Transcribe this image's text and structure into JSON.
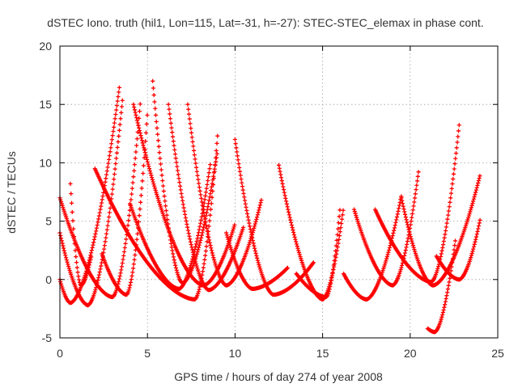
{
  "chart_data": {
    "type": "scatter",
    "title": "dSTEC Iono. truth (hil1, Lon=115, Lat=-31, h=-27): STEC-STEC_elemax in phase cont.",
    "xlabel": "GPS time / hours of day 274 of year 2008",
    "ylabel": "dSTEC  / TECUs",
    "xlim": [
      0,
      25
    ],
    "ylim": [
      -5,
      20
    ],
    "xticks": [
      0,
      5,
      10,
      15,
      20,
      25
    ],
    "yticks": [
      -5,
      0,
      5,
      10,
      15,
      20
    ],
    "grid": true,
    "marker": "plus",
    "color": "#ff0000",
    "arcs": [
      {
        "t_start": 0.0,
        "t_end": 3.4,
        "t_min": 0.6,
        "y_min": -2.0,
        "y_start": 0.0,
        "y_end": 16.5
      },
      {
        "t_start": 0.0,
        "t_end": 3.6,
        "t_min": 1.6,
        "y_min": -2.2,
        "y_start": 4.0,
        "y_end": 15.8
      },
      {
        "t_start": 0.0,
        "t_end": 4.6,
        "t_min": 3.0,
        "y_min": -1.5,
        "y_start": 7.0,
        "y_end": 15.3
      },
      {
        "t_start": 0.6,
        "t_end": 1.8,
        "t_min": 1.2,
        "y_min": -0.5,
        "y_start": 8.2,
        "y_end": 2.0
      },
      {
        "t_start": 2.4,
        "t_end": 5.0,
        "t_min": 3.8,
        "y_min": -1.3,
        "y_start": 2.2,
        "y_end": 14.3
      },
      {
        "t_start": 2.0,
        "t_end": 9.0,
        "t_min": 7.7,
        "y_min": -1.7,
        "y_start": 9.5,
        "y_end": 12.3
      },
      {
        "t_start": 4.0,
        "t_end": 8.6,
        "t_min": 6.8,
        "y_min": -0.8,
        "y_start": 6.5,
        "y_end": 10.0
      },
      {
        "t_start": 4.2,
        "t_end": 10.0,
        "t_min": 8.2,
        "y_min": -0.5,
        "y_start": 15.0,
        "y_end": 4.8
      },
      {
        "t_start": 5.3,
        "t_end": 9.0,
        "t_min": 7.0,
        "y_min": -0.3,
        "y_start": 17.0,
        "y_end": 11.0
      },
      {
        "t_start": 6.2,
        "t_end": 10.5,
        "t_min": 8.5,
        "y_min": -0.9,
        "y_start": 15.0,
        "y_end": 4.6
      },
      {
        "t_start": 7.3,
        "t_end": 11.5,
        "t_min": 9.5,
        "y_min": -0.5,
        "y_start": 15.0,
        "y_end": 6.8
      },
      {
        "t_start": 10.0,
        "t_end": 14.5,
        "t_min": 12.2,
        "y_min": -1.3,
        "y_start": 12.0,
        "y_end": 1.5
      },
      {
        "t_start": 12.5,
        "t_end": 16.2,
        "t_min": 15.0,
        "y_min": -1.7,
        "y_start": 9.8,
        "y_end": 6.2
      },
      {
        "t_start": 9.5,
        "t_end": 13.0,
        "t_min": 11.0,
        "y_min": -0.8,
        "y_start": 4.0,
        "y_end": 1.0
      },
      {
        "t_start": 16.8,
        "t_end": 20.5,
        "t_min": 19.0,
        "y_min": -0.5,
        "y_start": 6.0,
        "y_end": 9.5
      },
      {
        "t_start": 16.2,
        "t_end": 19.5,
        "t_min": 17.5,
        "y_min": -1.7,
        "y_start": 0.5,
        "y_end": 7.2
      },
      {
        "t_start": 18.0,
        "t_end": 22.8,
        "t_min": 21.2,
        "y_min": -0.2,
        "y_start": 6.0,
        "y_end": 13.3
      },
      {
        "t_start": 19.5,
        "t_end": 24.0,
        "t_min": 21.3,
        "y_min": -0.5,
        "y_start": 7.0,
        "y_end": 9.0
      },
      {
        "t_start": 21.0,
        "t_end": 22.6,
        "t_min": 21.4,
        "y_min": -4.5,
        "y_start": -4.2,
        "y_end": 3.6
      },
      {
        "t_start": 21.5,
        "t_end": 24.0,
        "t_min": 22.8,
        "y_min": 0.0,
        "y_start": 2.0,
        "y_end": 5.2
      },
      {
        "t_start": 13.5,
        "t_end": 16.0,
        "t_min": 15.2,
        "y_min": -1.5,
        "y_start": 0.5,
        "y_end": 6.2
      }
    ]
  }
}
